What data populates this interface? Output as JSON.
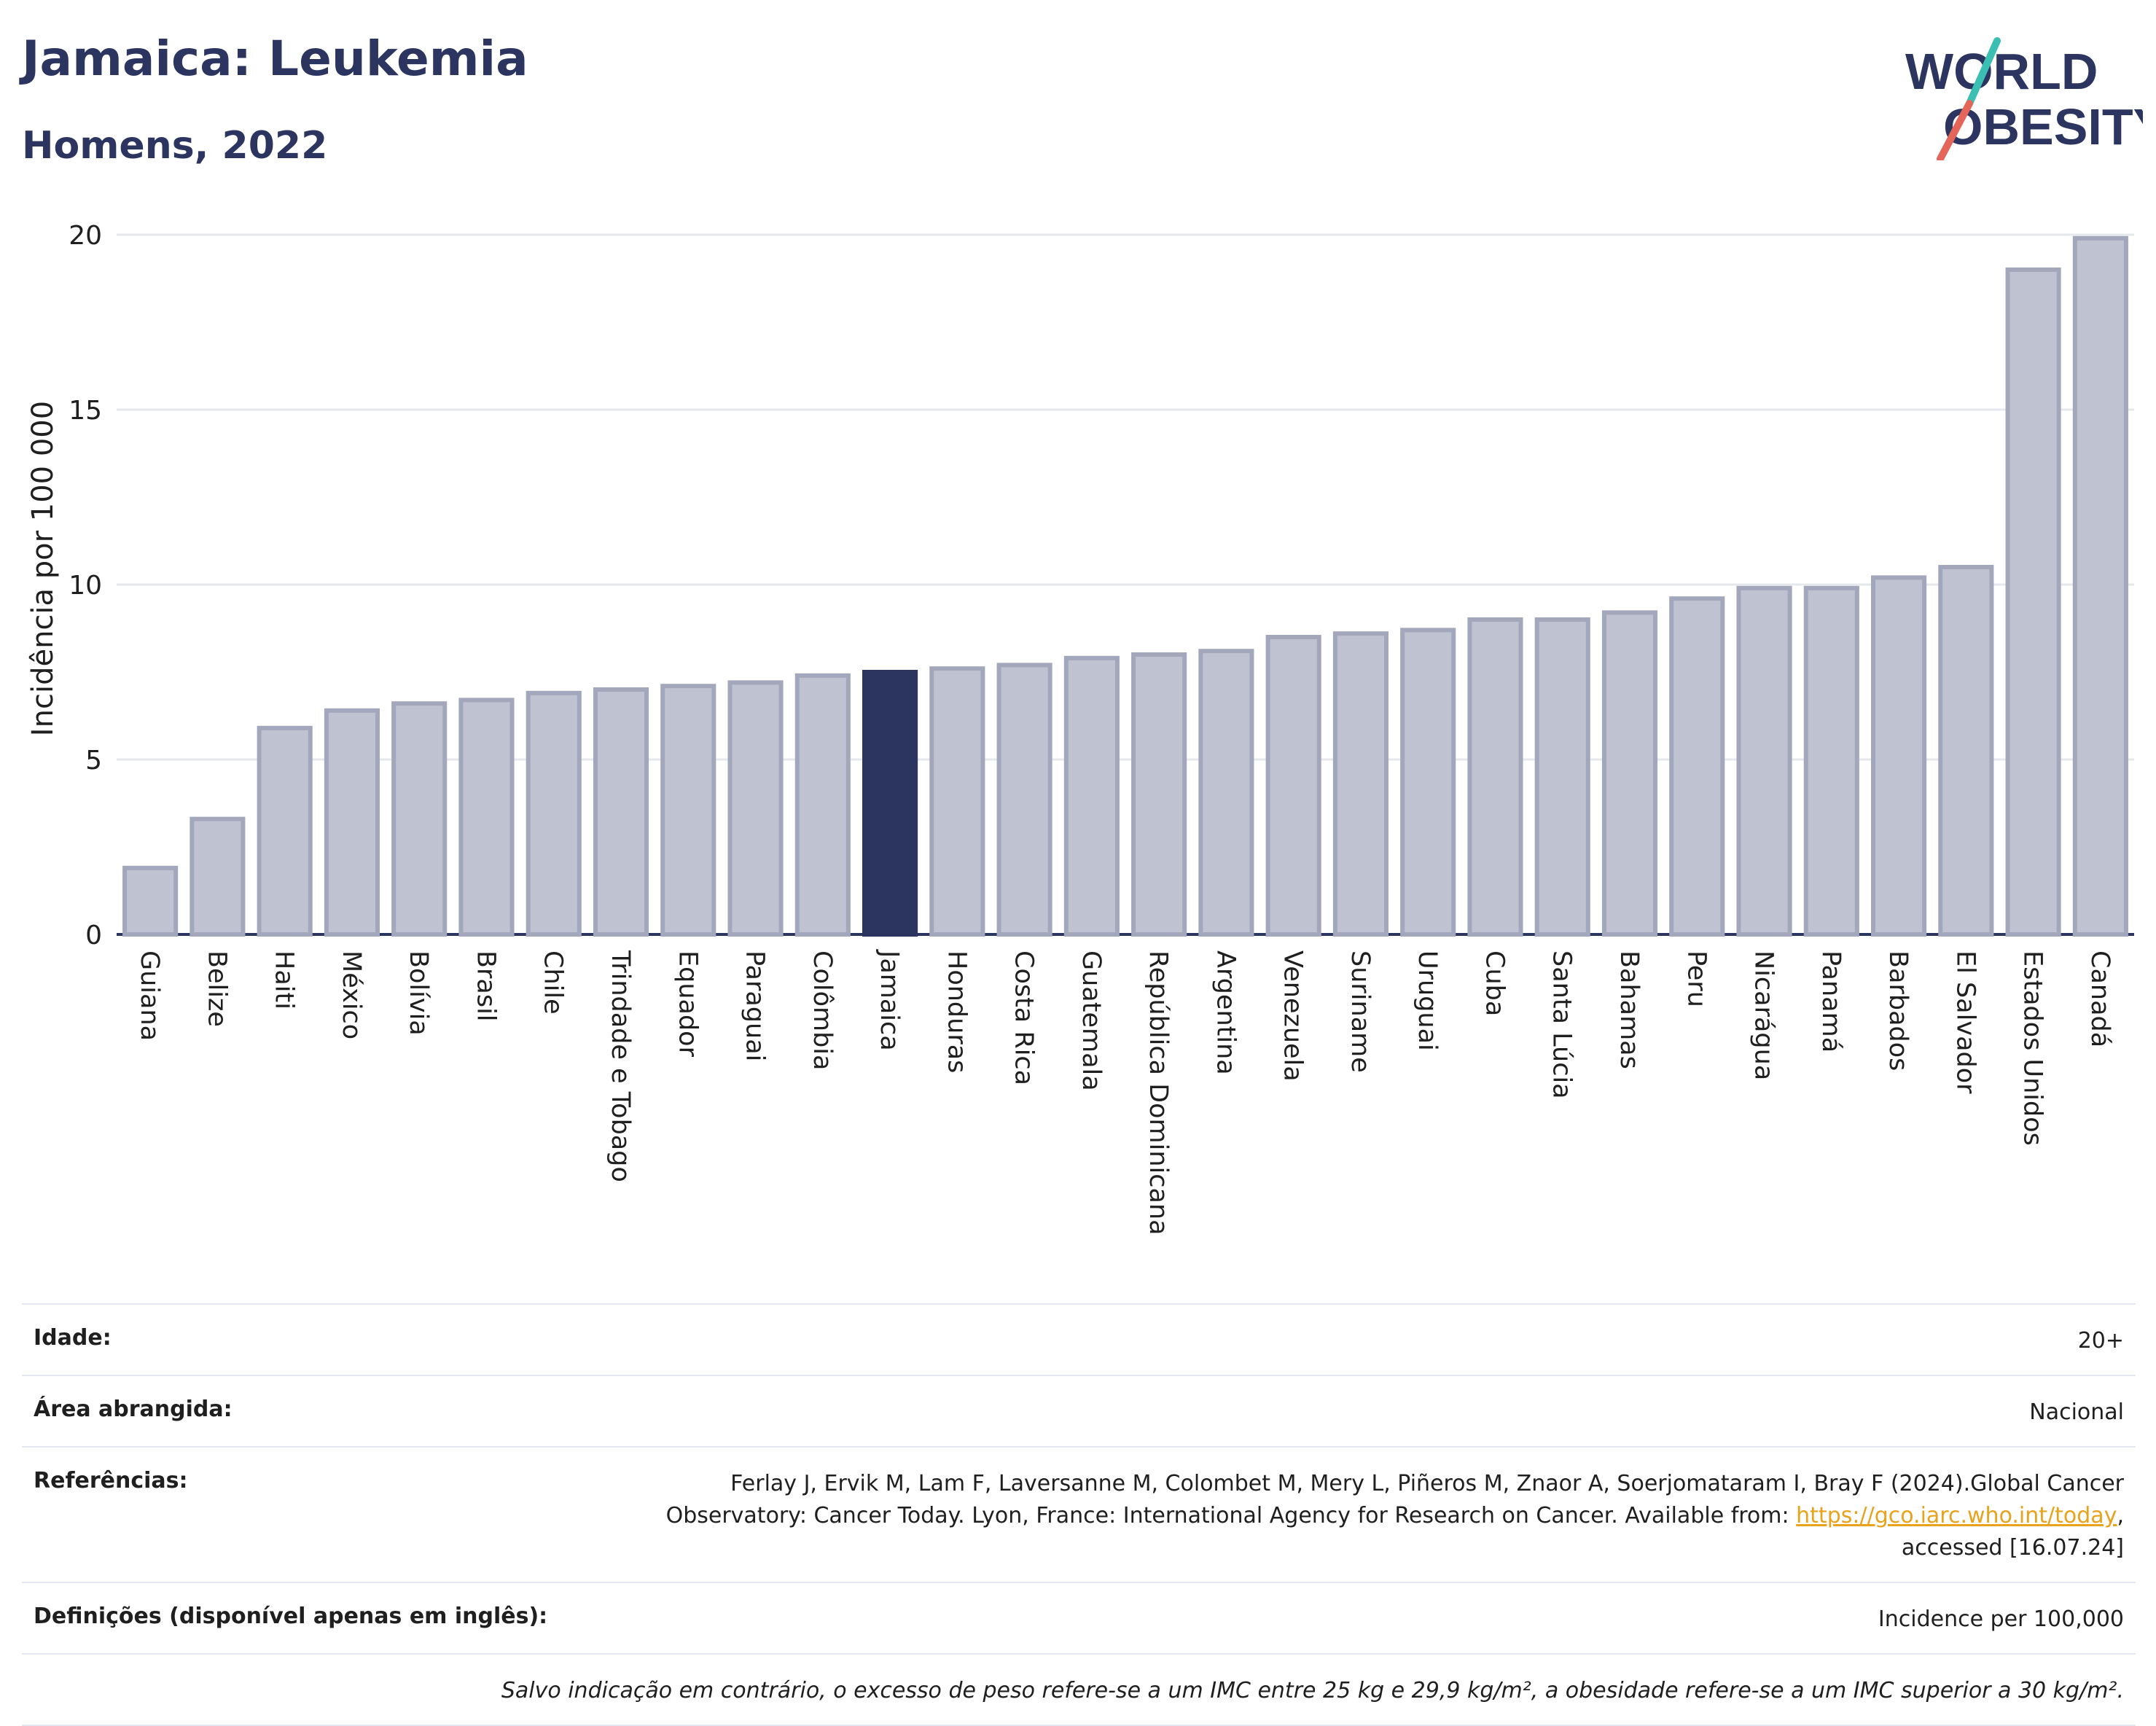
{
  "header": {
    "title": "Jamaica: Leukemia",
    "subtitle": "Homens, 2022"
  },
  "logo": {
    "line1": "WORLD",
    "line2": "OBESITY",
    "colors": [
      "#2b3560",
      "#3bbfb3",
      "#e4665a"
    ]
  },
  "colors": {
    "bar": "#bfc3d1",
    "bar_border": "#a2a7bb",
    "highlight": "#2b3560",
    "grid": "#e6e8ee",
    "axis": "#2b3560"
  },
  "chart_data": {
    "type": "bar",
    "title": "Jamaica: Leukemia",
    "subtitle": "Homens, 2022",
    "xlabel": "",
    "ylabel": "Incidência por 100 000",
    "ylim": [
      0,
      20
    ],
    "yticks": [
      0,
      5,
      10,
      15,
      20
    ],
    "grid": true,
    "highlight": "Jamaica",
    "categories": [
      "Guiana",
      "Belize",
      "Haiti",
      "México",
      "Bolívia",
      "Brasil",
      "Chile",
      "Trindade e Tobago",
      "Equador",
      "Paraguai",
      "Colômbia",
      "Jamaica",
      "Honduras",
      "Costa Rica",
      "Guatemala",
      "República Dominicana",
      "Argentina",
      "Venezuela",
      "Suriname",
      "Uruguai",
      "Cuba",
      "Santa Lúcia",
      "Bahamas",
      "Peru",
      "Nicarágua",
      "Panamá",
      "Barbados",
      "El Salvador",
      "Estados Unidos",
      "Canadá"
    ],
    "values": [
      1.9,
      3.3,
      5.9,
      6.4,
      6.6,
      6.7,
      6.9,
      7.0,
      7.1,
      7.2,
      7.4,
      7.5,
      7.6,
      7.7,
      7.9,
      8.0,
      8.1,
      8.5,
      8.6,
      8.7,
      9.0,
      9.0,
      9.2,
      9.6,
      9.9,
      9.9,
      10.2,
      10.5,
      19.0,
      19.9
    ]
  },
  "info": {
    "age_label": "Idade:",
    "age_value": "20+",
    "area_label": "Área abrangida:",
    "area_value": "Nacional",
    "refs_label": "Referências:",
    "refs_text_1": "Ferlay J, Ervik M, Lam F, Laversanne M, Colombet M, Mery L, Piñeros M, Znaor A, Soerjomataram I, Bray F (2024).Global Cancer Observatory: Cancer Today. Lyon, France: International Agency for Research on Cancer. Available from: ",
    "refs_link": "https://gco.iarc.who.int/today",
    "refs_text_2": ", accessed [16.07.24]",
    "defs_label": "Definições (disponível apenas em inglês):",
    "defs_value": "Incidence per 100,000",
    "note": "Salvo indicação em contrário, o excesso de peso refere-se a um IMC entre 25 kg e 29,9 kg/m², a obesidade refere-se a um IMC superior a 30 kg/m²."
  }
}
